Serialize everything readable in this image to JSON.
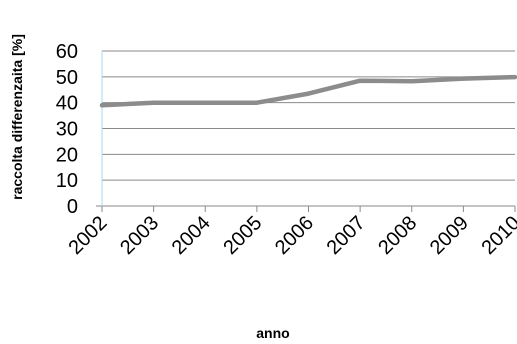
{
  "chart_data": {
    "type": "line",
    "title": "",
    "xlabel": "anno",
    "ylabel": "raccolta differenzaita  [%]",
    "categories": [
      "2002",
      "2003",
      "2004",
      "2005",
      "2006",
      "2007",
      "2008",
      "2009",
      "2010"
    ],
    "series": [
      {
        "values": [
          39,
          40,
          40,
          40,
          43.5,
          48.5,
          48.3,
          49.3,
          49.9
        ],
        "color": "#8c8c8c"
      }
    ],
    "ylim": [
      0,
      60
    ],
    "yticks": [
      "0",
      "10",
      "20",
      "30",
      "40",
      "50",
      "60"
    ],
    "grid": true,
    "legend": "none",
    "colors": {
      "gridline": "#8a8a8a",
      "axis": "#8a8a8a",
      "y_axis_line": "#a9d7f0"
    }
  }
}
